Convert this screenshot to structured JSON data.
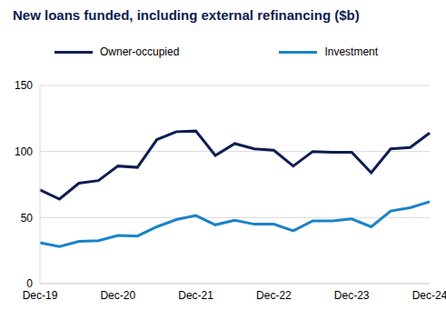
{
  "chart_data": {
    "type": "line",
    "title": "New loans funded, including external refinancing ($b)",
    "categories": [
      "Dec-19",
      null,
      null,
      null,
      "Dec-20",
      null,
      null,
      null,
      "Dec-21",
      null,
      null,
      null,
      "Dec-22",
      null,
      null,
      null,
      "Dec-23",
      null,
      null,
      null,
      "Dec-24"
    ],
    "series": [
      {
        "name": "Owner-occupied",
        "color": "#0e1d51",
        "values": [
          71,
          64,
          76,
          78,
          89,
          88,
          109,
          115,
          115.5,
          97,
          106,
          102,
          101,
          89,
          100,
          99.5,
          99.5,
          84,
          102,
          103,
          114
        ]
      },
      {
        "name": "Investment",
        "color": "#1a83c8",
        "values": [
          31,
          28,
          32,
          32.5,
          36.5,
          36,
          43,
          48.5,
          51.5,
          44.5,
          48,
          45,
          45,
          40,
          47.5,
          47.5,
          49,
          43,
          55,
          57.5,
          62
        ]
      }
    ],
    "ylim": [
      0,
      150
    ],
    "yticks": [
      0,
      50,
      100,
      150
    ],
    "grid": true,
    "legend": "top"
  }
}
